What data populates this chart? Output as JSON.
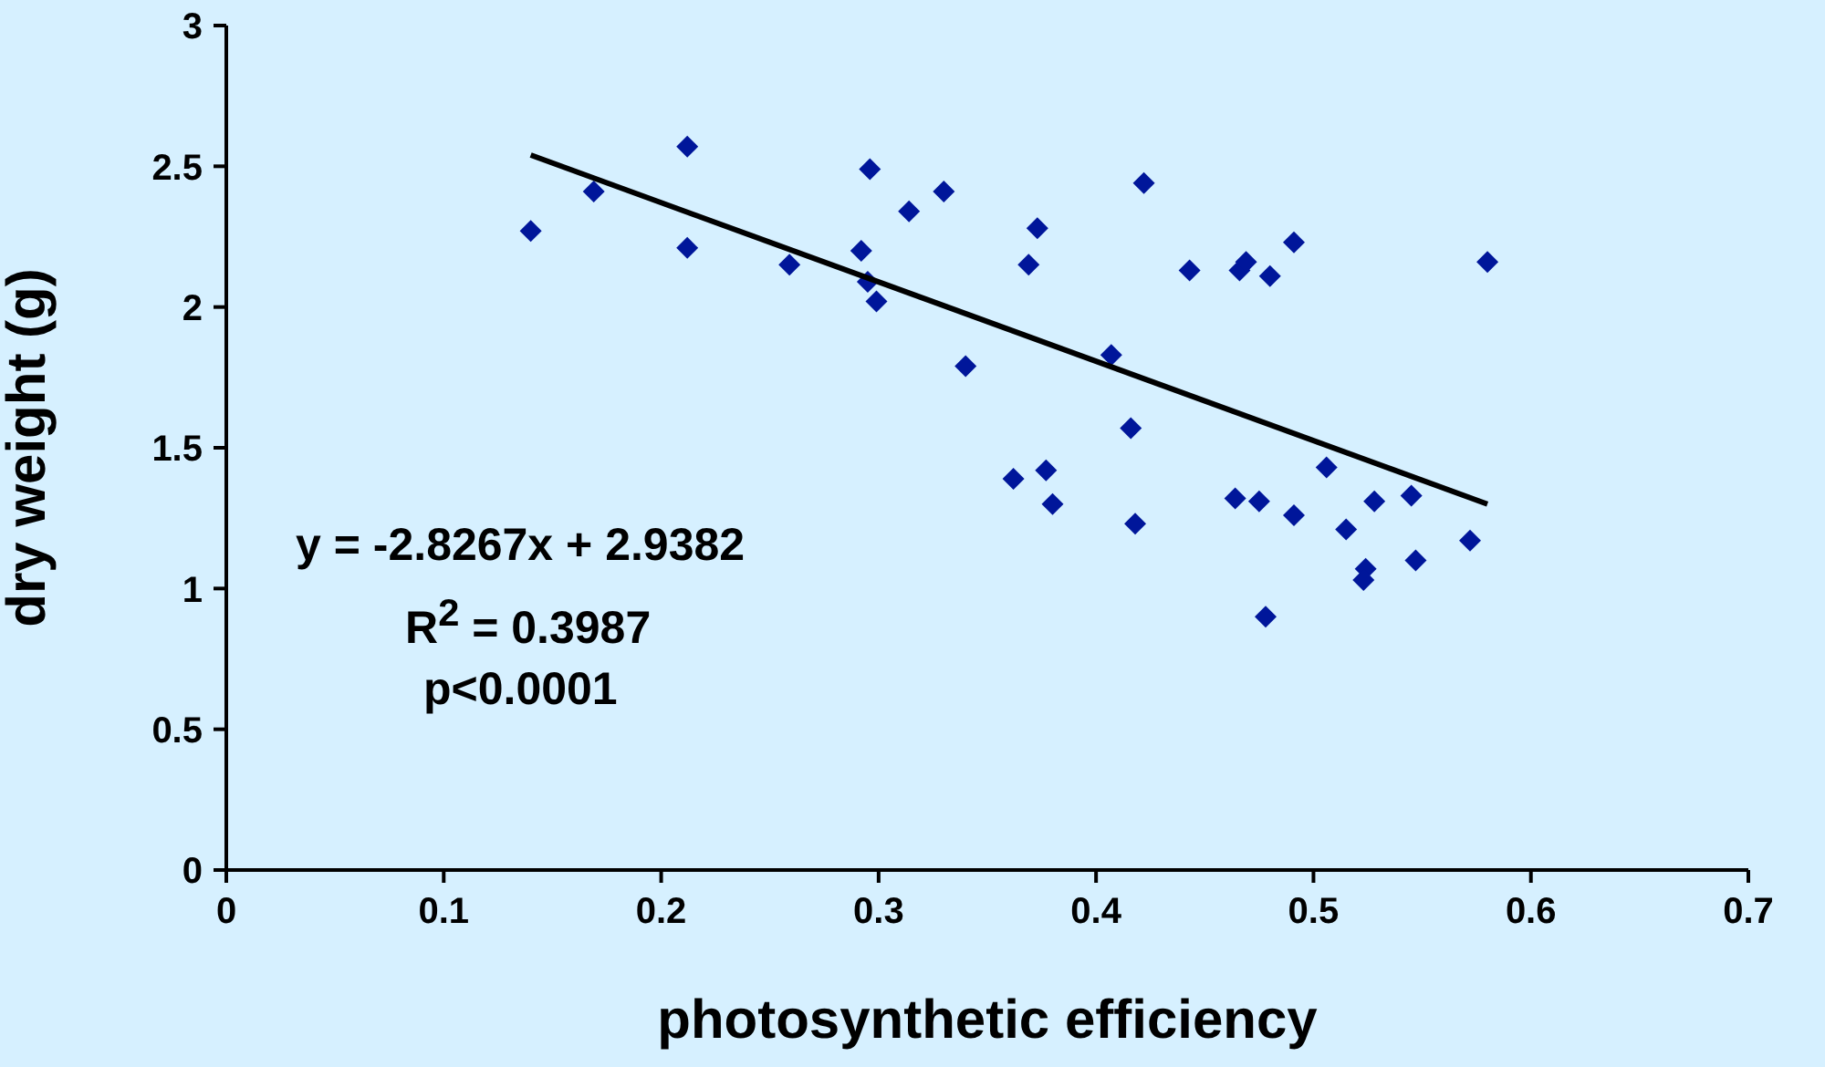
{
  "chart_data": {
    "type": "scatter",
    "xlabel": "photosynthetic efficiency",
    "ylabel": "dry weight (g)",
    "xlim": [
      0,
      0.7
    ],
    "xticks": [
      0,
      0.1,
      0.2,
      0.3,
      0.4,
      0.5,
      0.6,
      0.7
    ],
    "ylim": [
      0,
      3
    ],
    "yticks": [
      0,
      0.5,
      1,
      1.5,
      2,
      2.5,
      3
    ],
    "grid": false,
    "marker": "diamond",
    "annotations": [
      "y = -2.8267x + 2.9382",
      "R$^{2}$ = 0.3987",
      "p<0.0001"
    ],
    "series": [
      {
        "type": "scatter",
        "color": "#00169a",
        "x": [
          0.14,
          0.169,
          0.212,
          0.212,
          0.259,
          0.292,
          0.296,
          0.295,
          0.299,
          0.314,
          0.33,
          0.34,
          0.369,
          0.373,
          0.362,
          0.377,
          0.38,
          0.407,
          0.416,
          0.418,
          0.422,
          0.443,
          0.466,
          0.469,
          0.48,
          0.491,
          0.464,
          0.475,
          0.478,
          0.491,
          0.506,
          0.515,
          0.528,
          0.524,
          0.523,
          0.545,
          0.547,
          0.572,
          0.58
        ],
        "values": [
          2.27,
          2.41,
          2.57,
          2.21,
          2.15,
          2.2,
          2.49,
          2.09,
          2.02,
          2.34,
          2.41,
          1.79,
          2.15,
          2.28,
          1.39,
          1.42,
          1.3,
          1.83,
          1.57,
          1.23,
          2.44,
          2.13,
          2.13,
          2.16,
          2.11,
          2.23,
          1.32,
          1.31,
          0.9,
          1.26,
          1.43,
          1.21,
          1.31,
          1.07,
          1.03,
          1.33,
          1.1,
          1.17,
          2.16
        ]
      },
      {
        "type": "line",
        "color": "#000000",
        "marker": "none",
        "x": [
          0.14,
          0.58
        ],
        "values": [
          2.54,
          1.3
        ]
      }
    ]
  }
}
